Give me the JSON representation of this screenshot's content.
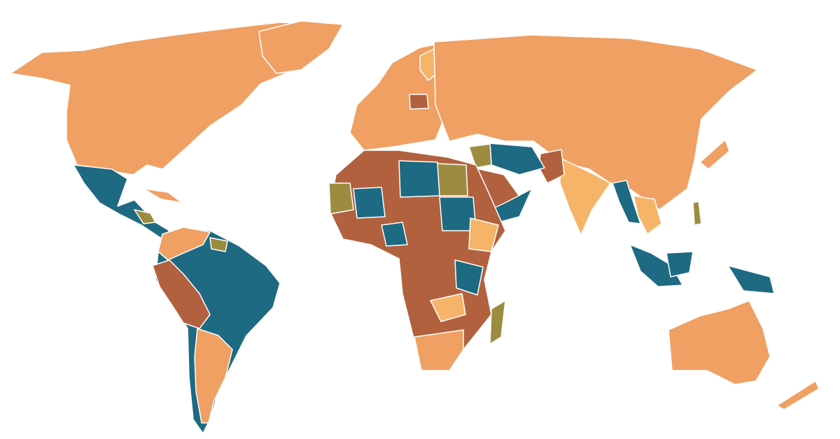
{
  "map": {
    "palette": {
      "base": "#efa062",
      "light": "#f6b468",
      "rust": "#b2613f",
      "teal": "#1e6a82",
      "olive": "#9b8c40"
    }
  }
}
